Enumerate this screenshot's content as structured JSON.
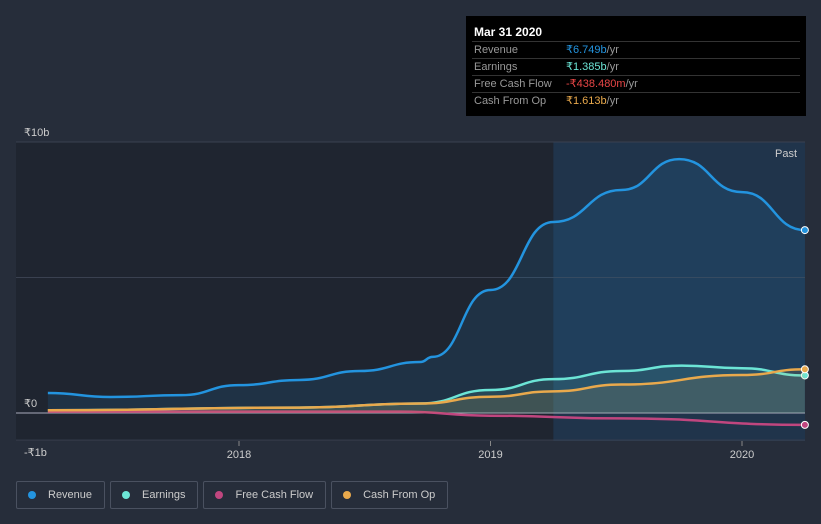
{
  "tooltip": {
    "date": "Mar 31 2020",
    "rows": [
      {
        "label": "Revenue",
        "value": "₹6.749b",
        "unit": " /yr",
        "color": "#2394df"
      },
      {
        "label": "Earnings",
        "value": "₹1.385b",
        "unit": " /yr",
        "color": "#6ce5d6"
      },
      {
        "label": "Free Cash Flow",
        "value": "-₹438.480m",
        "unit": " /yr",
        "color": "#e84646"
      },
      {
        "label": "Cash From Op",
        "value": "₹1.613b",
        "unit": " /yr",
        "color": "#e9a94c"
      }
    ]
  },
  "chart_data": {
    "type": "line",
    "ylim": [
      -1,
      10
    ],
    "xlim": [
      2017.13,
      2020.25
    ],
    "y_ticks": [
      {
        "v": 10,
        "label": "₹10b"
      },
      {
        "v": 0,
        "label": "₹0"
      },
      {
        "v": -1,
        "label": "-₹1b"
      }
    ],
    "x_ticks": [
      {
        "v": 2018,
        "label": "2018"
      },
      {
        "v": 2019,
        "label": "2019"
      },
      {
        "v": 2020,
        "label": "2020"
      }
    ],
    "past_label": "Past",
    "past_start": 2019.25,
    "series": [
      {
        "name": "Revenue",
        "color": "#2394df",
        "fill": true,
        "x": [
          2017.24,
          2017.49,
          2017.77,
          2018,
          2018.24,
          2018.48,
          2018.72,
          2018.77,
          2019,
          2019.25,
          2019.52,
          2019.75,
          2020,
          2020.25
        ],
        "y": [
          0.74,
          0.59,
          0.66,
          1.03,
          1.22,
          1.55,
          1.88,
          2.07,
          4.54,
          7.05,
          8.23,
          9.37,
          8.15,
          6.749
        ]
      },
      {
        "name": "Earnings",
        "color": "#6ce5d6",
        "fill": true,
        "x": [
          2017.24,
          2018.24,
          2018.72,
          2019,
          2019.25,
          2019.52,
          2019.76,
          2020,
          2020.25
        ],
        "y": [
          0.1,
          0.2,
          0.35,
          0.85,
          1.25,
          1.55,
          1.75,
          1.65,
          1.385
        ]
      },
      {
        "name": "Free Cash Flow",
        "color": "#c0467f",
        "fill": false,
        "x": [
          2017.24,
          2018.64,
          2019,
          2019.52,
          2020.25
        ],
        "y": [
          0.05,
          0.05,
          -0.1,
          -0.2,
          -0.438
        ]
      },
      {
        "name": "Cash From Op",
        "color": "#e9a94c",
        "fill": true,
        "x": [
          2017.24,
          2018.24,
          2018.72,
          2019,
          2019.25,
          2019.52,
          2020,
          2020.25
        ],
        "y": [
          0.1,
          0.2,
          0.35,
          0.6,
          0.8,
          1.05,
          1.4,
          1.613
        ]
      }
    ]
  }
}
